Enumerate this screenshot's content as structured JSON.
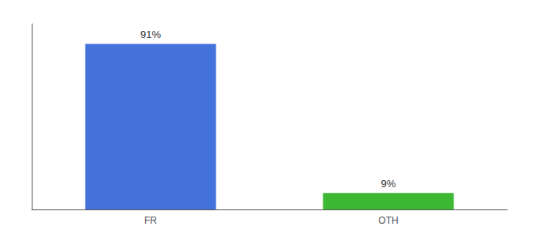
{
  "chart_data": {
    "type": "bar",
    "categories": [
      "FR",
      "OTH"
    ],
    "values": [
      91,
      9
    ],
    "value_labels": [
      "91%",
      "9%"
    ],
    "colors": [
      "#4472db",
      "#3cb832"
    ],
    "ylim": [
      0,
      102
    ],
    "data_labels": true,
    "tick_labels": "x",
    "grid": false
  }
}
